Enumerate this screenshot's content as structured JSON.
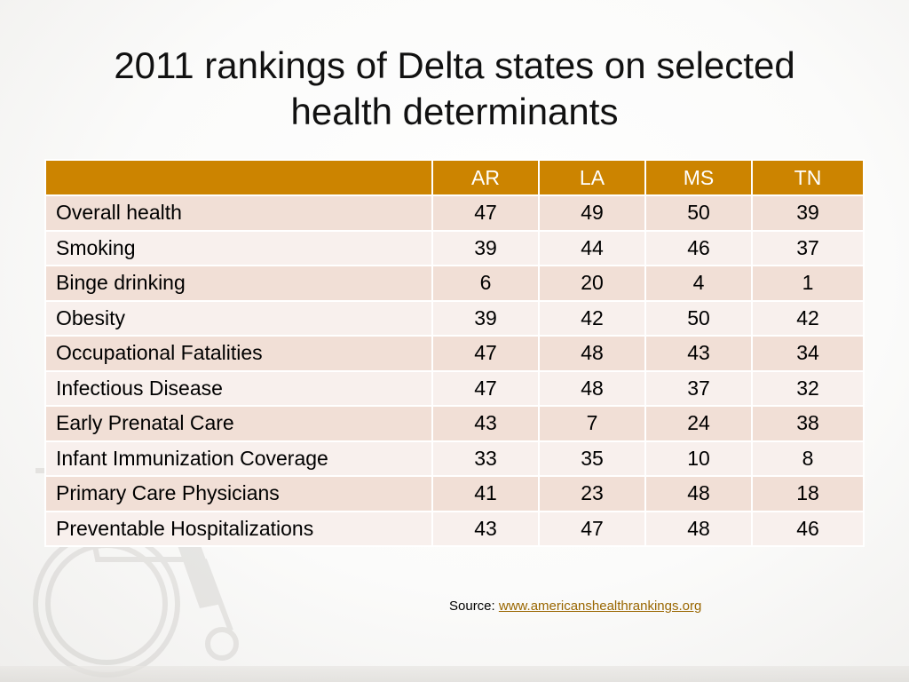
{
  "title": {
    "line1": "2011 rankings of Delta states on selected",
    "line2": "health determinants"
  },
  "table": {
    "headers": [
      "",
      "AR",
      "LA",
      "MS",
      "TN"
    ],
    "rows": [
      {
        "label": "Overall health",
        "values": [
          "47",
          "49",
          "50",
          "39"
        ]
      },
      {
        "label": "Smoking",
        "values": [
          "39",
          "44",
          "46",
          "37"
        ]
      },
      {
        "label": "Binge drinking",
        "values": [
          "6",
          "20",
          "4",
          "1"
        ]
      },
      {
        "label": "Obesity",
        "values": [
          "39",
          "42",
          "50",
          "42"
        ]
      },
      {
        "label": "Occupational Fatalities",
        "values": [
          "47",
          "48",
          "43",
          "34"
        ]
      },
      {
        "label": "Infectious Disease",
        "values": [
          "47",
          "48",
          "37",
          "32"
        ]
      },
      {
        "label": "Early Prenatal Care",
        "values": [
          "43",
          "7",
          "24",
          "38"
        ]
      },
      {
        "label": "Infant Immunization Coverage",
        "values": [
          "33",
          "35",
          "10",
          "8"
        ]
      },
      {
        "label": "Primary Care Physicians",
        "values": [
          "41",
          "23",
          "48",
          "18"
        ]
      },
      {
        "label": "Preventable Hospitalizations",
        "values": [
          "43",
          "47",
          "48",
          "46"
        ]
      }
    ]
  },
  "source": {
    "label": "Source: ",
    "link_text": "www.americanshealthrankings.org"
  },
  "colors": {
    "header_bg": "#cc8400",
    "row_odd": "#f1dfd6",
    "row_even": "#f8f0ed",
    "link": "#996600"
  },
  "icons": {
    "watermark": "wheelchair-figure-icon"
  }
}
